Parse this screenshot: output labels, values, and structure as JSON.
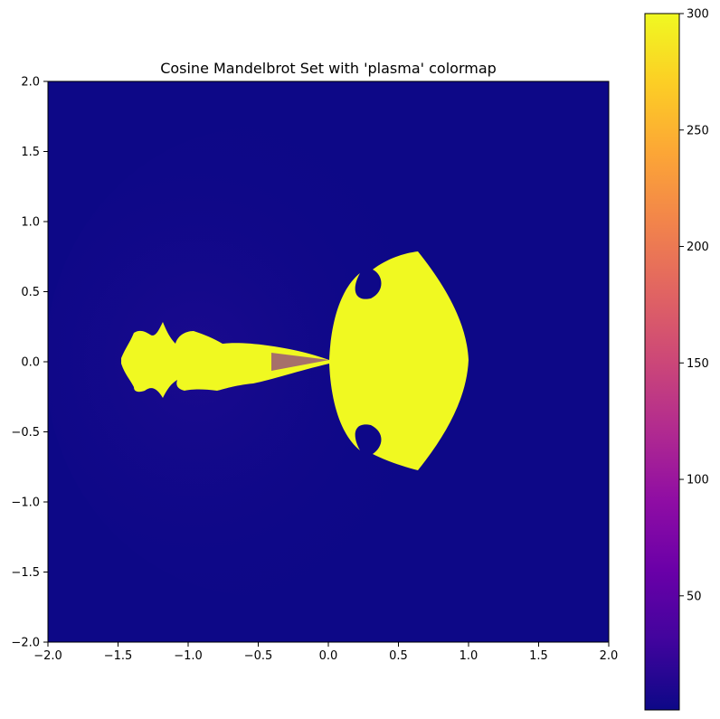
{
  "chart_data": {
    "type": "heatmap",
    "title": "Cosine Mandelbrot Set with 'plasma' colormap",
    "xlabel": "",
    "ylabel": "",
    "xlim": [
      -2.0,
      2.0
    ],
    "ylim": [
      -2.0,
      2.0
    ],
    "x_ticks": [
      "−2.0",
      "−1.5",
      "−1.0",
      "−0.5",
      "0.0",
      "0.5",
      "1.0",
      "1.5",
      "2.0"
    ],
    "x_tick_values": [
      -2.0,
      -1.5,
      -1.0,
      -0.5,
      0.0,
      0.5,
      1.0,
      1.5,
      2.0
    ],
    "y_ticks": [
      "2.0",
      "1.5",
      "1.0",
      "0.5",
      "0.0",
      "−0.5",
      "−1.0",
      "−1.5",
      "−2.0"
    ],
    "y_tick_values": [
      2.0,
      1.5,
      1.0,
      0.5,
      0.0,
      -0.5,
      -1.0,
      -1.5,
      -2.0
    ],
    "colormap": "plasma",
    "colorbar": {
      "range": [
        1,
        300
      ],
      "ticks": [
        "50",
        "100",
        "150",
        "200",
        "250",
        "300"
      ],
      "tick_values": [
        50,
        100,
        150,
        200,
        250,
        300
      ]
    },
    "colors": {
      "background": "#0d0887",
      "set": "#f0f921",
      "edge": "#6a00a8"
    },
    "grid": false
  }
}
